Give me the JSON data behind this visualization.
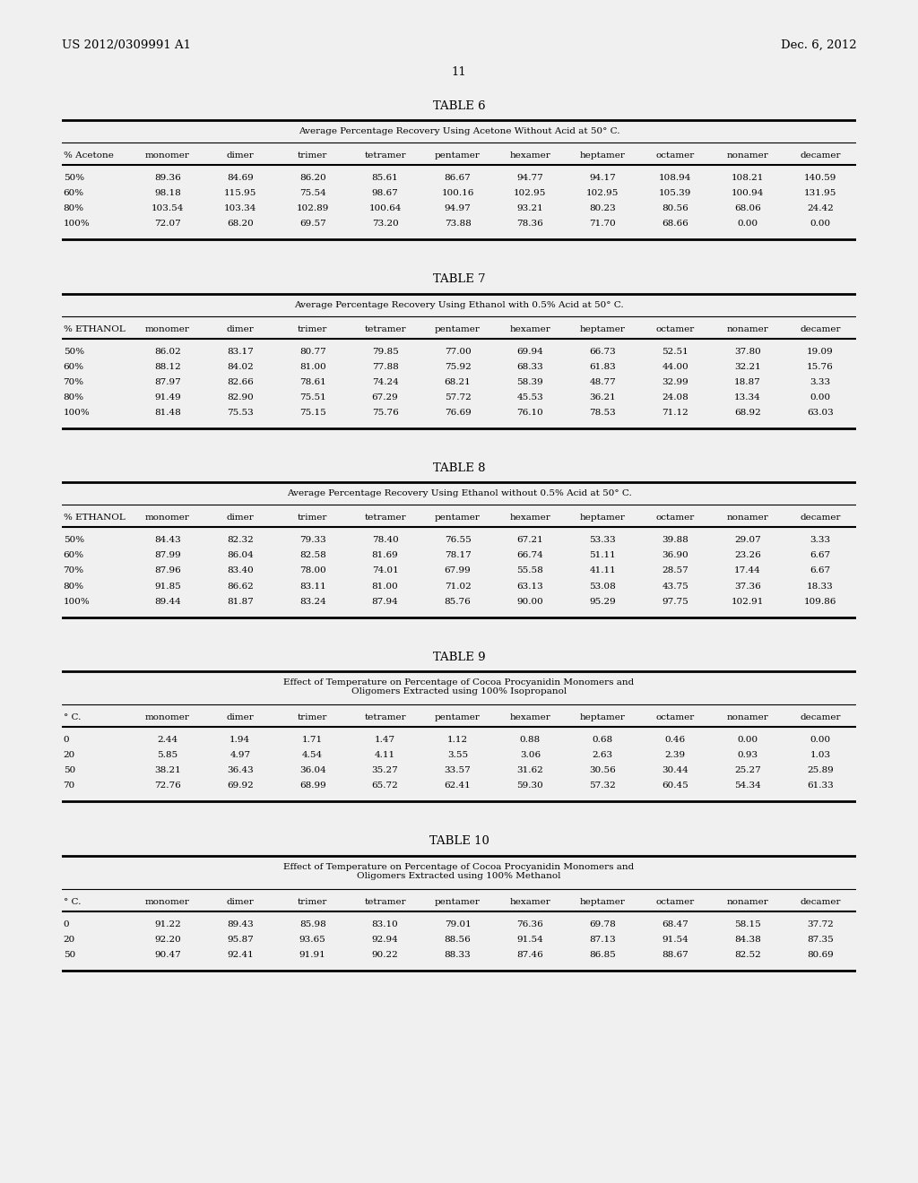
{
  "header_left": "US 2012/0309991 A1",
  "header_right": "Dec. 6, 2012",
  "page_number": "11",
  "bg_color": "#f0f0f0",
  "page_color": "#ffffff",
  "tables": [
    {
      "title": "TABLE 6",
      "subtitle": "Average Percentage Recovery Using Acetone Without Acid at 50° C.",
      "subtitle_lines": 1,
      "columns": [
        "% Acetone",
        "monomer",
        "dimer",
        "trimer",
        "tetramer",
        "pentamer",
        "hexamer",
        "heptamer",
        "octamer",
        "nonamer",
        "decamer"
      ],
      "rows": [
        [
          "50%",
          "89.36",
          "84.69",
          "86.20",
          "85.61",
          "86.67",
          "94.77",
          "94.17",
          "108.94",
          "108.21",
          "140.59"
        ],
        [
          "60%",
          "98.18",
          "115.95",
          "75.54",
          "98.67",
          "100.16",
          "102.95",
          "102.95",
          "105.39",
          "100.94",
          "131.95"
        ],
        [
          "80%",
          "103.54",
          "103.34",
          "102.89",
          "100.64",
          "94.97",
          "93.21",
          "80.23",
          "80.56",
          "68.06",
          "24.42"
        ],
        [
          "100%",
          "72.07",
          "68.20",
          "69.57",
          "73.20",
          "73.88",
          "78.36",
          "71.70",
          "68.66",
          "0.00",
          "0.00"
        ]
      ]
    },
    {
      "title": "TABLE 7",
      "subtitle": "Average Percentage Recovery Using Ethanol with 0.5% Acid at 50° C.",
      "subtitle_lines": 1,
      "columns": [
        "% ETHANOL",
        "monomer",
        "dimer",
        "trimer",
        "tetramer",
        "pentamer",
        "hexamer",
        "heptamer",
        "octamer",
        "nonamer",
        "decamer"
      ],
      "rows": [
        [
          "50%",
          "86.02",
          "83.17",
          "80.77",
          "79.85",
          "77.00",
          "69.94",
          "66.73",
          "52.51",
          "37.80",
          "19.09"
        ],
        [
          "60%",
          "88.12",
          "84.02",
          "81.00",
          "77.88",
          "75.92",
          "68.33",
          "61.83",
          "44.00",
          "32.21",
          "15.76"
        ],
        [
          "70%",
          "87.97",
          "82.66",
          "78.61",
          "74.24",
          "68.21",
          "58.39",
          "48.77",
          "32.99",
          "18.87",
          "3.33"
        ],
        [
          "80%",
          "91.49",
          "82.90",
          "75.51",
          "67.29",
          "57.72",
          "45.53",
          "36.21",
          "24.08",
          "13.34",
          "0.00"
        ],
        [
          "100%",
          "81.48",
          "75.53",
          "75.15",
          "75.76",
          "76.69",
          "76.10",
          "78.53",
          "71.12",
          "68.92",
          "63.03"
        ]
      ]
    },
    {
      "title": "TABLE 8",
      "subtitle": "Average Percentage Recovery Using Ethanol without 0.5% Acid at 50° C.",
      "subtitle_lines": 1,
      "columns": [
        "% ETHANOL",
        "monomer",
        "dimer",
        "trimer",
        "tetramer",
        "pentamer",
        "hexamer",
        "heptamer",
        "octamer",
        "nonamer",
        "decamer"
      ],
      "rows": [
        [
          "50%",
          "84.43",
          "82.32",
          "79.33",
          "78.40",
          "76.55",
          "67.21",
          "53.33",
          "39.88",
          "29.07",
          "3.33"
        ],
        [
          "60%",
          "87.99",
          "86.04",
          "82.58",
          "81.69",
          "78.17",
          "66.74",
          "51.11",
          "36.90",
          "23.26",
          "6.67"
        ],
        [
          "70%",
          "87.96",
          "83.40",
          "78.00",
          "74.01",
          "67.99",
          "55.58",
          "41.11",
          "28.57",
          "17.44",
          "6.67"
        ],
        [
          "80%",
          "91.85",
          "86.62",
          "83.11",
          "81.00",
          "71.02",
          "63.13",
          "53.08",
          "43.75",
          "37.36",
          "18.33"
        ],
        [
          "100%",
          "89.44",
          "81.87",
          "83.24",
          "87.94",
          "85.76",
          "90.00",
          "95.29",
          "97.75",
          "102.91",
          "109.86"
        ]
      ]
    },
    {
      "title": "TABLE 9",
      "subtitle": "Effect of Temperature on Percentage of Cocoa Procyanidin Monomers and\nOligomers Extracted using 100% Isopropanol",
      "subtitle_lines": 2,
      "columns": [
        "° C.",
        "monomer",
        "dimer",
        "trimer",
        "tetramer",
        "pentamer",
        "hexamer",
        "heptamer",
        "octamer",
        "nonamer",
        "decamer"
      ],
      "rows": [
        [
          "0",
          "2.44",
          "1.94",
          "1.71",
          "1.47",
          "1.12",
          "0.88",
          "0.68",
          "0.46",
          "0.00",
          "0.00"
        ],
        [
          "20",
          "5.85",
          "4.97",
          "4.54",
          "4.11",
          "3.55",
          "3.06",
          "2.63",
          "2.39",
          "0.93",
          "1.03"
        ],
        [
          "50",
          "38.21",
          "36.43",
          "36.04",
          "35.27",
          "33.57",
          "31.62",
          "30.56",
          "30.44",
          "25.27",
          "25.89"
        ],
        [
          "70",
          "72.76",
          "69.92",
          "68.99",
          "65.72",
          "62.41",
          "59.30",
          "57.32",
          "60.45",
          "54.34",
          "61.33"
        ]
      ]
    },
    {
      "title": "TABLE 10",
      "subtitle": "Effect of Temperature on Percentage of Cocoa Procyanidin Monomers and\nOligomers Extracted using 100% Methanol",
      "subtitle_lines": 2,
      "columns": [
        "° C.",
        "monomer",
        "dimer",
        "trimer",
        "tetramer",
        "pentamer",
        "hexamer",
        "heptamer",
        "octamer",
        "nonamer",
        "decamer"
      ],
      "rows": [
        [
          "0",
          "91.22",
          "89.43",
          "85.98",
          "83.10",
          "79.01",
          "76.36",
          "69.78",
          "68.47",
          "58.15",
          "37.72"
        ],
        [
          "20",
          "92.20",
          "95.87",
          "93.65",
          "92.94",
          "88.56",
          "91.54",
          "87.13",
          "91.54",
          "84.38",
          "87.35"
        ],
        [
          "50",
          "90.47",
          "92.41",
          "91.91",
          "90.22",
          "88.33",
          "87.46",
          "86.85",
          "88.67",
          "82.52",
          "80.69"
        ]
      ]
    }
  ]
}
